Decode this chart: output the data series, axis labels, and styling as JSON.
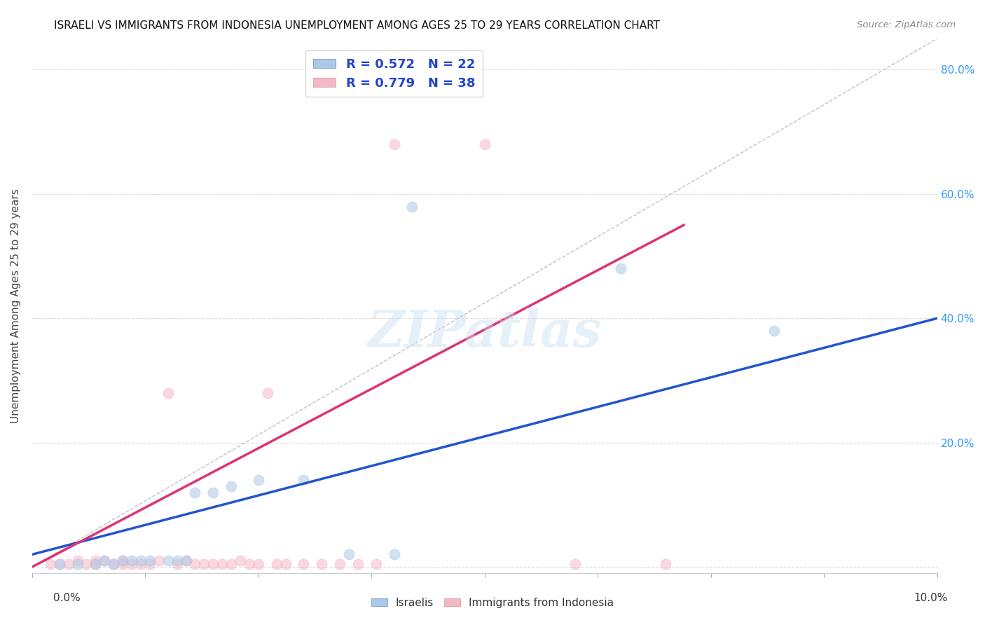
{
  "title": "ISRAELI VS IMMIGRANTS FROM INDONESIA UNEMPLOYMENT AMONG AGES 25 TO 29 YEARS CORRELATION CHART",
  "source": "Source: ZipAtlas.com",
  "ylabel": "Unemployment Among Ages 25 to 29 years",
  "xlim": [
    0.0,
    0.1
  ],
  "ylim": [
    -0.01,
    0.85
  ],
  "yticks": [
    0.0,
    0.2,
    0.4,
    0.6,
    0.8
  ],
  "watermark": "ZIPatlas",
  "israeli_color": "#adc8e8",
  "indonesian_color": "#f5b8c8",
  "israeli_line_color": "#2255cc",
  "indonesian_line_color": "#dd3377",
  "diagonal_color": "#bbbbbb",
  "R_israeli": 0.572,
  "N_israeli": 22,
  "R_indonesian": 0.779,
  "N_indonesian": 38,
  "israeli_scatter": [
    [
      0.003,
      0.005
    ],
    [
      0.005,
      0.005
    ],
    [
      0.007,
      0.005
    ],
    [
      0.008,
      0.01
    ],
    [
      0.009,
      0.005
    ],
    [
      0.01,
      0.01
    ],
    [
      0.011,
      0.01
    ],
    [
      0.012,
      0.01
    ],
    [
      0.013,
      0.01
    ],
    [
      0.015,
      0.01
    ],
    [
      0.016,
      0.01
    ],
    [
      0.017,
      0.01
    ],
    [
      0.018,
      0.12
    ],
    [
      0.02,
      0.12
    ],
    [
      0.022,
      0.13
    ],
    [
      0.025,
      0.14
    ],
    [
      0.03,
      0.14
    ],
    [
      0.035,
      0.02
    ],
    [
      0.04,
      0.02
    ],
    [
      0.042,
      0.58
    ],
    [
      0.065,
      0.48
    ],
    [
      0.082,
      0.38
    ]
  ],
  "indonesian_scatter": [
    [
      0.002,
      0.005
    ],
    [
      0.003,
      0.005
    ],
    [
      0.004,
      0.005
    ],
    [
      0.005,
      0.01
    ],
    [
      0.006,
      0.005
    ],
    [
      0.007,
      0.01
    ],
    [
      0.007,
      0.005
    ],
    [
      0.008,
      0.01
    ],
    [
      0.009,
      0.005
    ],
    [
      0.01,
      0.005
    ],
    [
      0.01,
      0.01
    ],
    [
      0.011,
      0.005
    ],
    [
      0.012,
      0.005
    ],
    [
      0.013,
      0.005
    ],
    [
      0.014,
      0.01
    ],
    [
      0.015,
      0.28
    ],
    [
      0.016,
      0.005
    ],
    [
      0.017,
      0.01
    ],
    [
      0.018,
      0.005
    ],
    [
      0.019,
      0.005
    ],
    [
      0.02,
      0.005
    ],
    [
      0.021,
      0.005
    ],
    [
      0.022,
      0.005
    ],
    [
      0.023,
      0.01
    ],
    [
      0.024,
      0.005
    ],
    [
      0.025,
      0.005
    ],
    [
      0.026,
      0.28
    ],
    [
      0.027,
      0.005
    ],
    [
      0.028,
      0.005
    ],
    [
      0.03,
      0.005
    ],
    [
      0.032,
      0.005
    ],
    [
      0.034,
      0.005
    ],
    [
      0.036,
      0.005
    ],
    [
      0.038,
      0.005
    ],
    [
      0.04,
      0.68
    ],
    [
      0.05,
      0.68
    ],
    [
      0.06,
      0.005
    ],
    [
      0.07,
      0.005
    ]
  ],
  "israeli_line": [
    [
      0.0,
      0.02
    ],
    [
      0.1,
      0.4
    ]
  ],
  "indonesian_line": [
    [
      0.0,
      0.0
    ],
    [
      0.072,
      0.55
    ]
  ],
  "bg_color": "#ffffff",
  "grid_color": "#dddddd",
  "title_fontsize": 11,
  "axis_label_fontsize": 11,
  "tick_fontsize": 11,
  "legend_fontsize": 13,
  "marker_size": 120,
  "marker_alpha": 0.55
}
